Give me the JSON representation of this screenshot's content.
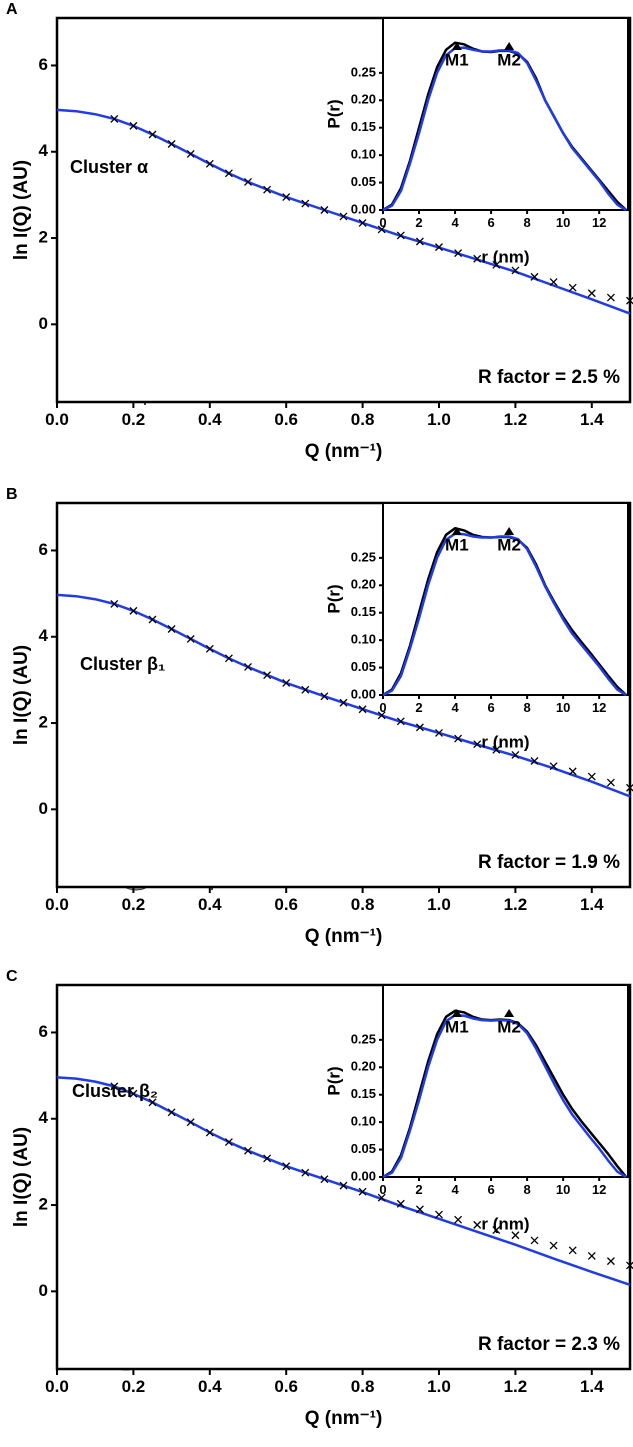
{
  "chart_data": [
    {
      "type": "line",
      "panel": "A",
      "xlabel": "Q (nm⁻¹)",
      "ylabel": "ln I(Q) (AU)",
      "cluster": "Cluster α",
      "r_factor": "R factor = 2.5 %",
      "xlim": [
        0,
        1.5
      ],
      "ylim": [
        -1.8,
        7.1
      ],
      "xticks": [
        {
          "value": 0,
          "label": "0.0"
        },
        {
          "value": 0.2,
          "label": "0.2"
        },
        {
          "value": 0.4,
          "label": "0.4"
        },
        {
          "value": 0.6,
          "label": "0.6"
        },
        {
          "value": 0.8,
          "label": "0.8"
        },
        {
          "value": 1,
          "label": "1.0"
        },
        {
          "value": 1.2,
          "label": "1.2"
        },
        {
          "value": 1.4,
          "label": "1.4"
        }
      ],
      "yticks": [
        0,
        2,
        4,
        6
      ],
      "series": [
        {
          "color": "#1f3ce8",
          "x": [
            0,
            0.05,
            0.1,
            0.15,
            0.2,
            0.25,
            0.3,
            0.35,
            0.4,
            0.45,
            0.5,
            0.6,
            0.7,
            0.8,
            0.9,
            1.0,
            1.1,
            1.2,
            1.3,
            1.4,
            1.5
          ],
          "values": [
            4.97,
            4.94,
            4.87,
            4.76,
            4.6,
            4.4,
            4.18,
            3.95,
            3.72,
            3.5,
            3.3,
            2.95,
            2.65,
            2.35,
            2.05,
            1.78,
            1.5,
            1.22,
            0.9,
            0.58,
            0.25
          ]
        },
        {
          "color": "#000000",
          "marker": "x",
          "x": [
            0.15,
            0.2,
            0.25,
            0.3,
            0.35,
            0.4,
            0.45,
            0.5,
            0.55,
            0.6,
            0.65,
            0.7,
            0.75,
            0.8,
            0.85,
            0.9,
            0.95,
            1.0,
            1.05,
            1.1,
            1.15,
            1.2,
            1.25,
            1.3,
            1.35,
            1.4,
            1.45,
            1.5
          ],
          "values": [
            4.76,
            4.6,
            4.4,
            4.18,
            3.95,
            3.72,
            3.5,
            3.3,
            3.12,
            2.95,
            2.8,
            2.65,
            2.5,
            2.35,
            2.2,
            2.06,
            1.92,
            1.79,
            1.65,
            1.52,
            1.38,
            1.25,
            1.1,
            0.98,
            0.85,
            0.72,
            0.62,
            0.55
          ]
        }
      ],
      "inset": {
        "type": "line",
        "xlabel": "r (nm)",
        "ylabel": "P(r)",
        "xlim": [
          0,
          13.6
        ],
        "ylim": [
          0,
          0.35
        ],
        "xticks": [
          0,
          2,
          4,
          6,
          8,
          10,
          12
        ],
        "yticks": [
          {
            "value": 0,
            "label": "0.00"
          },
          {
            "value": 0.05,
            "label": "0.05"
          },
          {
            "value": 0.1,
            "label": "0.10"
          },
          {
            "value": 0.15,
            "label": "0.15"
          },
          {
            "value": 0.2,
            "label": "0.20"
          },
          {
            "value": 0.25,
            "label": "0.25"
          }
        ],
        "markers": [
          {
            "label": "M1",
            "x": 4.1
          },
          {
            "label": "M2",
            "x": 7
          }
        ],
        "series": [
          {
            "color": "#000000",
            "x": [
              0,
              0.5,
              1,
              1.5,
              2,
              2.5,
              3,
              3.5,
              4,
              4.5,
              5,
              5.5,
              6,
              6.5,
              7,
              7.5,
              8,
              8.5,
              9,
              9.5,
              10,
              10.5,
              11,
              11.5,
              12,
              12.5,
              13,
              13.5
            ],
            "values": [
              0,
              0.01,
              0.04,
              0.09,
              0.15,
              0.21,
              0.26,
              0.292,
              0.305,
              0.302,
              0.294,
              0.289,
              0.288,
              0.29,
              0.29,
              0.285,
              0.27,
              0.24,
              0.2,
              0.17,
              0.14,
              0.115,
              0.095,
              0.075,
              0.055,
              0.035,
              0.015,
              0
            ]
          },
          {
            "color": "#1f3ce8",
            "x": [
              0,
              0.5,
              1,
              1.5,
              2,
              2.5,
              3,
              3.5,
              4,
              4.5,
              5,
              5.5,
              6,
              6.5,
              7,
              7.5,
              8,
              8.5,
              9,
              9.5,
              10,
              10.5,
              11,
              11.5,
              12,
              12.5,
              13,
              13.5
            ],
            "values": [
              0,
              0.008,
              0.035,
              0.085,
              0.14,
              0.2,
              0.25,
              0.282,
              0.295,
              0.296,
              0.292,
              0.289,
              0.289,
              0.291,
              0.291,
              0.286,
              0.268,
              0.236,
              0.2,
              0.17,
              0.14,
              0.113,
              0.093,
              0.073,
              0.053,
              0.03,
              0.01,
              0
            ]
          }
        ]
      }
    },
    {
      "type": "line",
      "panel": "B",
      "xlabel": "Q (nm⁻¹)",
      "ylabel": "ln I(Q) (AU)",
      "cluster": "Cluster β₁",
      "r_factor": "R factor = 1.9 %",
      "xlim": [
        0,
        1.5
      ],
      "ylim": [
        -1.8,
        7.1
      ],
      "xticks": [
        {
          "value": 0,
          "label": "0.0"
        },
        {
          "value": 0.2,
          "label": "0.2"
        },
        {
          "value": 0.4,
          "label": "0.4"
        },
        {
          "value": 0.6,
          "label": "0.6"
        },
        {
          "value": 0.8,
          "label": "0.8"
        },
        {
          "value": 1,
          "label": "1.0"
        },
        {
          "value": 1.2,
          "label": "1.2"
        },
        {
          "value": 1.4,
          "label": "1.4"
        }
      ],
      "yticks": [
        0,
        2,
        4,
        6
      ],
      "series": [
        {
          "color": "#1f3ce8",
          "x": [
            0,
            0.05,
            0.1,
            0.15,
            0.2,
            0.25,
            0.3,
            0.35,
            0.4,
            0.45,
            0.5,
            0.6,
            0.7,
            0.8,
            0.9,
            1.0,
            1.1,
            1.2,
            1.3,
            1.4,
            1.5
          ],
          "values": [
            4.97,
            4.94,
            4.87,
            4.76,
            4.6,
            4.4,
            4.18,
            3.95,
            3.72,
            3.5,
            3.3,
            2.93,
            2.62,
            2.32,
            2.03,
            1.77,
            1.5,
            1.24,
            0.95,
            0.64,
            0.3
          ]
        },
        {
          "color": "#000000",
          "marker": "x",
          "x": [
            0.15,
            0.2,
            0.25,
            0.3,
            0.35,
            0.4,
            0.45,
            0.5,
            0.55,
            0.6,
            0.65,
            0.7,
            0.75,
            0.8,
            0.85,
            0.9,
            0.95,
            1.0,
            1.05,
            1.1,
            1.15,
            1.2,
            1.25,
            1.3,
            1.35,
            1.4,
            1.45,
            1.5
          ],
          "values": [
            4.76,
            4.6,
            4.4,
            4.18,
            3.95,
            3.72,
            3.5,
            3.3,
            3.11,
            2.93,
            2.77,
            2.62,
            2.47,
            2.32,
            2.18,
            2.04,
            1.9,
            1.77,
            1.64,
            1.51,
            1.38,
            1.26,
            1.12,
            1.0,
            0.88,
            0.76,
            0.62,
            0.5
          ]
        }
      ],
      "inset": {
        "type": "line",
        "xlabel": "r (nm)",
        "ylabel": "P(r)",
        "xlim": [
          0,
          13.6
        ],
        "ylim": [
          0,
          0.35
        ],
        "xticks": [
          0,
          2,
          4,
          6,
          8,
          10,
          12
        ],
        "yticks": [
          {
            "value": 0,
            "label": "0.00"
          },
          {
            "value": 0.05,
            "label": "0.05"
          },
          {
            "value": 0.1,
            "label": "0.10"
          },
          {
            "value": 0.15,
            "label": "0.15"
          },
          {
            "value": 0.2,
            "label": "0.20"
          },
          {
            "value": 0.25,
            "label": "0.25"
          }
        ],
        "markers": [
          {
            "label": "M1",
            "x": 4.1
          },
          {
            "label": "M2",
            "x": 7
          }
        ],
        "series": [
          {
            "color": "#000000",
            "x": [
              0,
              0.5,
              1,
              1.5,
              2,
              2.5,
              3,
              3.5,
              4,
              4.5,
              5,
              5.5,
              6,
              6.5,
              7,
              7.5,
              8,
              8.5,
              9,
              9.5,
              10,
              10.5,
              11,
              11.5,
              12,
              12.5,
              13,
              13.5
            ],
            "values": [
              0,
              0.01,
              0.04,
              0.09,
              0.15,
              0.21,
              0.26,
              0.292,
              0.304,
              0.3,
              0.292,
              0.288,
              0.287,
              0.288,
              0.288,
              0.283,
              0.268,
              0.238,
              0.2,
              0.17,
              0.142,
              0.118,
              0.097,
              0.077,
              0.056,
              0.035,
              0.015,
              0
            ]
          },
          {
            "color": "#1f3ce8",
            "x": [
              0,
              0.5,
              1,
              1.5,
              2,
              2.5,
              3,
              3.5,
              4,
              4.5,
              5,
              5.5,
              6,
              6.5,
              7,
              7.5,
              8,
              8.5,
              9,
              9.5,
              10,
              10.5,
              11,
              11.5,
              12,
              12.5,
              13,
              13.5
            ],
            "values": [
              0,
              0.008,
              0.035,
              0.085,
              0.14,
              0.2,
              0.25,
              0.283,
              0.294,
              0.293,
              0.289,
              0.287,
              0.287,
              0.289,
              0.289,
              0.284,
              0.266,
              0.234,
              0.198,
              0.167,
              0.138,
              0.112,
              0.092,
              0.072,
              0.052,
              0.03,
              0.01,
              0
            ]
          }
        ]
      }
    },
    {
      "type": "line",
      "panel": "C",
      "xlabel": "Q (nm⁻¹)",
      "ylabel": "ln I(Q) (AU)",
      "cluster": "Cluster β₂",
      "r_factor": "R factor = 2.3 %",
      "xlim": [
        0,
        1.5
      ],
      "ylim": [
        -1.8,
        7.1
      ],
      "xticks": [
        {
          "value": 0,
          "label": "0.0"
        },
        {
          "value": 0.2,
          "label": "0.2"
        },
        {
          "value": 0.4,
          "label": "0.4"
        },
        {
          "value": 0.6,
          "label": "0.6"
        },
        {
          "value": 0.8,
          "label": "0.8"
        },
        {
          "value": 1,
          "label": "1.0"
        },
        {
          "value": 1.2,
          "label": "1.2"
        },
        {
          "value": 1.4,
          "label": "1.4"
        }
      ],
      "yticks": [
        0,
        2,
        4,
        6
      ],
      "series": [
        {
          "color": "#1f3ce8",
          "x": [
            0,
            0.05,
            0.1,
            0.15,
            0.2,
            0.25,
            0.3,
            0.35,
            0.4,
            0.45,
            0.5,
            0.6,
            0.7,
            0.8,
            0.9,
            1.0,
            1.1,
            1.2,
            1.3,
            1.4,
            1.5
          ],
          "values": [
            4.96,
            4.93,
            4.86,
            4.75,
            4.58,
            4.38,
            4.15,
            3.92,
            3.68,
            3.46,
            3.26,
            2.9,
            2.6,
            2.3,
            1.98,
            1.68,
            1.38,
            1.08,
            0.76,
            0.45,
            0.15
          ]
        },
        {
          "color": "#000000",
          "marker": "x",
          "x": [
            0.15,
            0.2,
            0.25,
            0.3,
            0.35,
            0.4,
            0.45,
            0.5,
            0.55,
            0.6,
            0.65,
            0.7,
            0.75,
            0.8,
            0.85,
            0.9,
            0.95,
            1.0,
            1.05,
            1.1,
            1.15,
            1.2,
            1.25,
            1.3,
            1.35,
            1.4,
            1.45,
            1.5
          ],
          "values": [
            4.75,
            4.58,
            4.38,
            4.15,
            3.92,
            3.68,
            3.46,
            3.26,
            3.08,
            2.9,
            2.75,
            2.6,
            2.45,
            2.31,
            2.17,
            2.03,
            1.9,
            1.78,
            1.66,
            1.54,
            1.42,
            1.3,
            1.18,
            1.06,
            0.95,
            0.82,
            0.7,
            0.6
          ]
        }
      ],
      "inset": {
        "type": "line",
        "xlabel": "r (nm)",
        "ylabel": "P(r)",
        "xlim": [
          0,
          13.6
        ],
        "ylim": [
          0,
          0.35
        ],
        "xticks": [
          0,
          2,
          4,
          6,
          8,
          10,
          12
        ],
        "yticks": [
          {
            "value": 0,
            "label": "0.00"
          },
          {
            "value": 0.05,
            "label": "0.05"
          },
          {
            "value": 0.1,
            "label": "0.10"
          },
          {
            "value": 0.15,
            "label": "0.15"
          },
          {
            "value": 0.2,
            "label": "0.20"
          },
          {
            "value": 0.25,
            "label": "0.25"
          }
        ],
        "markers": [
          {
            "label": "M1",
            "x": 4.1
          },
          {
            "label": "M2",
            "x": 7
          }
        ],
        "series": [
          {
            "color": "#000000",
            "x": [
              0,
              0.5,
              1,
              1.5,
              2,
              2.5,
              3,
              3.5,
              4,
              4.5,
              5,
              5.5,
              6,
              6.5,
              7,
              7.5,
              8,
              8.5,
              9,
              9.5,
              10,
              10.5,
              11,
              11.5,
              12,
              12.5,
              13,
              13.5
            ],
            "values": [
              0,
              0.01,
              0.04,
              0.09,
              0.15,
              0.21,
              0.26,
              0.292,
              0.303,
              0.3,
              0.292,
              0.287,
              0.286,
              0.287,
              0.286,
              0.28,
              0.265,
              0.24,
              0.21,
              0.18,
              0.15,
              0.124,
              0.102,
              0.082,
              0.062,
              0.042,
              0.02,
              0
            ]
          },
          {
            "color": "#1f3ce8",
            "x": [
              0,
              0.5,
              1,
              1.5,
              2,
              2.5,
              3,
              3.5,
              4,
              4.5,
              5,
              5.5,
              6,
              6.5,
              7,
              7.5,
              8,
              8.5,
              9,
              9.5,
              10,
              10.5,
              11,
              11.5,
              12,
              12.5,
              13,
              13.5
            ],
            "values": [
              0,
              0.008,
              0.035,
              0.085,
              0.14,
              0.2,
              0.25,
              0.284,
              0.295,
              0.294,
              0.289,
              0.286,
              0.285,
              0.286,
              0.285,
              0.279,
              0.262,
              0.234,
              0.202,
              0.17,
              0.14,
              0.114,
              0.093,
              0.072,
              0.052,
              0.03,
              0.01,
              0
            ]
          }
        ]
      }
    }
  ]
}
